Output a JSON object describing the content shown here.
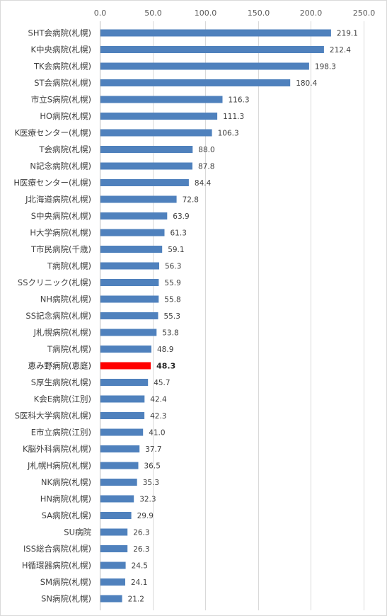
{
  "chart_data": {
    "type": "bar",
    "orientation": "horizontal",
    "title": "",
    "xlabel": "",
    "ylabel": "",
    "xlim": [
      0,
      250
    ],
    "x_ticks": [
      "0.0",
      "50.0",
      "100.0",
      "150.0",
      "200.0",
      "250.0"
    ],
    "x_axis_position": "top",
    "grid": true,
    "legend": "none",
    "colors": {
      "bar": "#4f81bd",
      "highlight": "#ff0000",
      "grid": "#d9d9d9"
    },
    "highlight_category": "恵み野病院(恵庭)",
    "categories": [
      "SHT会病院(札幌)",
      "K中央病院(札幌)",
      "TK会病院(札幌)",
      "ST会病院(札幌)",
      "市立S病院(札幌)",
      "HO病院(札幌)",
      "K医療センター(札幌)",
      "T会病院(札幌)",
      "N記念病院(札幌)",
      "H医療センター(札幌)",
      "J北海道病院(札幌)",
      "S中央病院(札幌)",
      "H大学病院(札幌)",
      "T市民病院(千歳)",
      "T病院(札幌)",
      "SSクリニック(札幌)",
      "NH病院(札幌)",
      "SS記念病院(札幌)",
      "J札幌病院(札幌)",
      "T病院(札幌)",
      "恵み野病院(恵庭)",
      "S厚生病院(札幌)",
      "K会E病院(江別)",
      "S医科大学病院(札幌)",
      "E市立病院(江別)",
      "K脳外科病院(札幌)",
      "J札幌H病院(札幌)",
      "NK病院(札幌)",
      "HN病院(札幌)",
      "SA病院(札幌)",
      "SU病院",
      "ISS総合病院(札幌)",
      "H循環器病院(札幌)",
      "SM病院(札幌)",
      "SN病院(札幌)"
    ],
    "values": [
      219.1,
      212.4,
      198.3,
      180.4,
      116.3,
      111.3,
      106.3,
      88.0,
      87.8,
      84.4,
      72.8,
      63.9,
      61.3,
      59.1,
      56.3,
      55.9,
      55.8,
      55.3,
      53.8,
      48.9,
      48.3,
      45.7,
      42.4,
      42.3,
      41.0,
      37.7,
      36.5,
      35.3,
      32.3,
      29.9,
      26.3,
      26.3,
      24.5,
      24.1,
      21.2
    ],
    "value_labels": [
      "219.1",
      "212.4",
      "198.3",
      "180.4",
      "116.3",
      "111.3",
      "106.3",
      "88.0",
      "87.8",
      "84.4",
      "72.8",
      "63.9",
      "61.3",
      "59.1",
      "56.3",
      "55.9",
      "55.8",
      "55.3",
      "53.8",
      "48.9",
      "48.3",
      "45.7",
      "42.4",
      "42.3",
      "41.0",
      "37.7",
      "36.5",
      "35.3",
      "32.3",
      "29.9",
      "26.3",
      "26.3",
      "24.5",
      "24.1",
      "21.2"
    ]
  }
}
